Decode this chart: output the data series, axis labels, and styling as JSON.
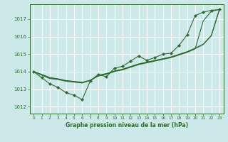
{
  "title": "Graphe pression niveau de la mer (hPa)",
  "bg_color": "#cce8e8",
  "grid_color": "#ffffff",
  "line_color": "#2d6a2d",
  "xlim": [
    -0.5,
    23.5
  ],
  "ylim": [
    1011.6,
    1017.85
  ],
  "yticks": [
    1012,
    1013,
    1014,
    1015,
    1016,
    1017
  ],
  "xticks": [
    0,
    1,
    2,
    3,
    4,
    5,
    6,
    7,
    8,
    9,
    10,
    11,
    12,
    13,
    14,
    15,
    16,
    17,
    18,
    19,
    20,
    21,
    22,
    23
  ],
  "curve_with_markers": [
    1014.0,
    1013.65,
    1013.3,
    1013.1,
    1012.8,
    1012.65,
    1012.4,
    1013.45,
    1013.85,
    1013.7,
    1014.2,
    1014.3,
    1014.6,
    1014.9,
    1014.65,
    1014.8,
    1015.0,
    1015.05,
    1015.5,
    1016.1,
    1017.2,
    1017.4,
    1017.5,
    1017.55
  ],
  "straight_line1": [
    1014.0,
    1013.8,
    1013.6,
    1013.55,
    1013.45,
    1013.4,
    1013.35,
    1013.5,
    1013.75,
    1013.85,
    1014.0,
    1014.1,
    1014.25,
    1014.4,
    1014.5,
    1014.6,
    1014.7,
    1014.8,
    1014.95,
    1015.1,
    1015.3,
    1016.9,
    1017.45,
    1017.55
  ],
  "straight_line2": [
    1014.0,
    1013.82,
    1013.64,
    1013.57,
    1013.47,
    1013.42,
    1013.37,
    1013.5,
    1013.77,
    1013.87,
    1014.02,
    1014.12,
    1014.27,
    1014.42,
    1014.52,
    1014.62,
    1014.72,
    1014.82,
    1014.97,
    1015.12,
    1015.32,
    1015.55,
    1016.05,
    1017.55
  ],
  "straight_line3": [
    1014.0,
    1013.84,
    1013.66,
    1013.59,
    1013.49,
    1013.44,
    1013.39,
    1013.5,
    1013.79,
    1013.89,
    1014.04,
    1014.14,
    1014.29,
    1014.44,
    1014.54,
    1014.64,
    1014.74,
    1014.84,
    1014.99,
    1015.14,
    1015.34,
    1015.57,
    1016.07,
    1017.55
  ]
}
